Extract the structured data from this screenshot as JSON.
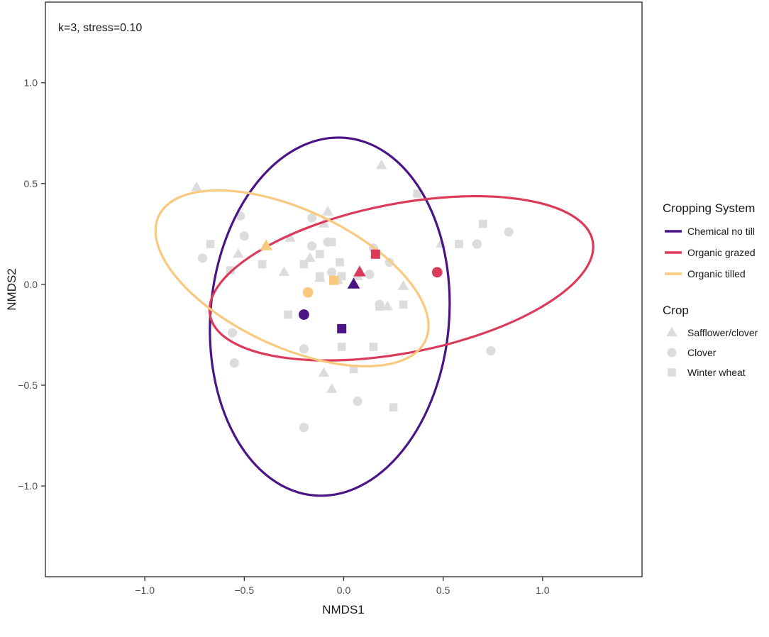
{
  "chart_data": {
    "type": "scatter",
    "annotation": "k=3, stress=0.10",
    "xlabel": "NMDS1",
    "ylabel": "NMDS2",
    "xlim": [
      -1.5,
      1.5
    ],
    "ylim": [
      -1.45,
      1.4
    ],
    "x_ticks": [
      -1.0,
      -0.5,
      0.0,
      0.5,
      1.0
    ],
    "x_tick_labels": [
      "−1.0",
      "−0.5",
      "0.0",
      "0.5",
      "1.0"
    ],
    "y_ticks": [
      1.0,
      0.5,
      0.0,
      -0.5,
      -1.0
    ],
    "y_tick_labels": [
      "1.0",
      "0.5",
      "0.0",
      "−0.5",
      "−1.0"
    ],
    "grid": false,
    "legend": {
      "placement": "right",
      "color_title": "Cropping System",
      "color_items": [
        {
          "label": "Chemical no till",
          "color": "#4a1486"
        },
        {
          "label": "Organic grazed",
          "color": "#dc3a5a"
        },
        {
          "label": "Organic tilled",
          "color": "#f8c97e"
        }
      ],
      "shape_title": "Crop",
      "shape_items": [
        {
          "label": "Safflower/clover",
          "shape": "triangle"
        },
        {
          "label": "Clover",
          "shape": "circle"
        },
        {
          "label": "Winter wheat",
          "shape": "square"
        }
      ]
    },
    "ellipses": [
      {
        "system": "Chemical no till",
        "color": "#4a1486",
        "cx": -0.07,
        "cy": -0.16,
        "rx": 0.6,
        "ry": 0.89,
        "angle": -5
      },
      {
        "system": "Organic grazed",
        "color": "#dc3a5a",
        "cx": 0.29,
        "cy": 0.03,
        "rx": 0.98,
        "ry": 0.37,
        "angle": 11
      },
      {
        "system": "Organic tilled",
        "color": "#f8c97e",
        "cx": -0.26,
        "cy": 0.03,
        "rx": 0.74,
        "ry": 0.34,
        "angle": -25
      }
    ],
    "background_points": [
      {
        "x": -0.74,
        "y": 0.48,
        "shape": "triangle"
      },
      {
        "x": -0.53,
        "y": 0.15,
        "shape": "triangle"
      },
      {
        "x": -0.27,
        "y": 0.23,
        "shape": "triangle"
      },
      {
        "x": -0.3,
        "y": 0.06,
        "shape": "triangle"
      },
      {
        "x": -0.17,
        "y": 0.13,
        "shape": "triangle"
      },
      {
        "x": -0.1,
        "y": 0.3,
        "shape": "triangle"
      },
      {
        "x": -0.08,
        "y": 0.36,
        "shape": "triangle"
      },
      {
        "x": -0.12,
        "y": 0.03,
        "shape": "triangle"
      },
      {
        "x": -0.03,
        "y": 0.02,
        "shape": "triangle"
      },
      {
        "x": 0.07,
        "y": 0.04,
        "shape": "triangle"
      },
      {
        "x": 0.19,
        "y": 0.59,
        "shape": "triangle"
      },
      {
        "x": 0.22,
        "y": -0.11,
        "shape": "triangle"
      },
      {
        "x": 0.3,
        "y": -0.01,
        "shape": "triangle"
      },
      {
        "x": 0.49,
        "y": 0.2,
        "shape": "triangle"
      },
      {
        "x": -0.1,
        "y": -0.44,
        "shape": "triangle"
      },
      {
        "x": -0.06,
        "y": -0.52,
        "shape": "triangle"
      },
      {
        "x": -0.71,
        "y": 0.13,
        "shape": "circle"
      },
      {
        "x": -0.52,
        "y": 0.34,
        "shape": "circle"
      },
      {
        "x": -0.5,
        "y": 0.24,
        "shape": "circle"
      },
      {
        "x": -0.56,
        "y": -0.24,
        "shape": "circle"
      },
      {
        "x": -0.55,
        "y": -0.39,
        "shape": "circle"
      },
      {
        "x": -0.16,
        "y": 0.33,
        "shape": "circle"
      },
      {
        "x": -0.08,
        "y": 0.21,
        "shape": "circle"
      },
      {
        "x": -0.16,
        "y": 0.19,
        "shape": "circle"
      },
      {
        "x": -0.06,
        "y": 0.06,
        "shape": "circle"
      },
      {
        "x": 0.15,
        "y": 0.18,
        "shape": "circle"
      },
      {
        "x": 0.13,
        "y": 0.05,
        "shape": "circle"
      },
      {
        "x": 0.23,
        "y": 0.11,
        "shape": "circle"
      },
      {
        "x": 0.18,
        "y": -0.1,
        "shape": "circle"
      },
      {
        "x": -0.2,
        "y": -0.32,
        "shape": "circle"
      },
      {
        "x": 0.07,
        "y": -0.58,
        "shape": "circle"
      },
      {
        "x": -0.2,
        "y": -0.71,
        "shape": "circle"
      },
      {
        "x": 0.67,
        "y": 0.2,
        "shape": "circle"
      },
      {
        "x": 0.83,
        "y": 0.26,
        "shape": "circle"
      },
      {
        "x": 0.74,
        "y": -0.33,
        "shape": "circle"
      },
      {
        "x": -0.67,
        "y": 0.2,
        "shape": "square"
      },
      {
        "x": -0.57,
        "y": 0.07,
        "shape": "square"
      },
      {
        "x": -0.41,
        "y": 0.1,
        "shape": "square"
      },
      {
        "x": -0.2,
        "y": 0.1,
        "shape": "square"
      },
      {
        "x": -0.12,
        "y": 0.15,
        "shape": "square"
      },
      {
        "x": -0.12,
        "y": 0.04,
        "shape": "square"
      },
      {
        "x": -0.02,
        "y": 0.11,
        "shape": "square"
      },
      {
        "x": -0.01,
        "y": 0.04,
        "shape": "square"
      },
      {
        "x": -0.06,
        "y": 0.21,
        "shape": "square"
      },
      {
        "x": -0.28,
        "y": -0.15,
        "shape": "square"
      },
      {
        "x": -0.01,
        "y": -0.31,
        "shape": "square"
      },
      {
        "x": 0.15,
        "y": -0.31,
        "shape": "square"
      },
      {
        "x": 0.18,
        "y": -0.11,
        "shape": "square"
      },
      {
        "x": 0.3,
        "y": -0.1,
        "shape": "square"
      },
      {
        "x": 0.37,
        "y": 0.45,
        "shape": "square"
      },
      {
        "x": 0.58,
        "y": 0.2,
        "shape": "square"
      },
      {
        "x": 0.7,
        "y": 0.3,
        "shape": "square"
      },
      {
        "x": 0.05,
        "y": -0.42,
        "shape": "square"
      },
      {
        "x": 0.25,
        "y": -0.61,
        "shape": "square"
      }
    ],
    "centroids": [
      {
        "system": "Chemical no till",
        "crop": "Safflower/clover",
        "x": 0.05,
        "y": 0.0
      },
      {
        "system": "Chemical no till",
        "crop": "Clover",
        "x": -0.2,
        "y": -0.15
      },
      {
        "system": "Chemical no till",
        "crop": "Winter wheat",
        "x": -0.01,
        "y": -0.22
      },
      {
        "system": "Organic grazed",
        "crop": "Safflower/clover",
        "x": 0.08,
        "y": 0.06
      },
      {
        "system": "Organic grazed",
        "crop": "Clover",
        "x": 0.47,
        "y": 0.06
      },
      {
        "system": "Organic grazed",
        "crop": "Winter wheat",
        "x": 0.16,
        "y": 0.15
      },
      {
        "system": "Organic tilled",
        "crop": "Safflower/clover",
        "x": -0.39,
        "y": 0.19
      },
      {
        "system": "Organic tilled",
        "crop": "Clover",
        "x": -0.18,
        "y": -0.04
      },
      {
        "system": "Organic tilled",
        "crop": "Winter wheat",
        "x": -0.05,
        "y": 0.02
      }
    ]
  }
}
